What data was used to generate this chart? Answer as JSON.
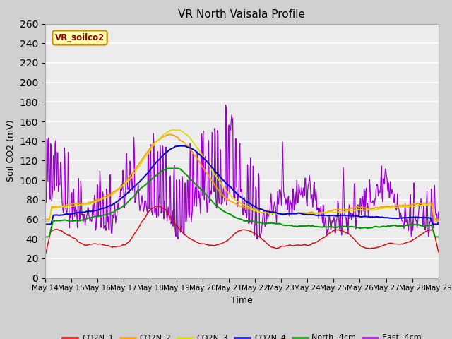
{
  "title": "VR North Vaisala Profile",
  "ylabel": "Soil CO2 (mV)",
  "xlabel": "Time",
  "annotation": "VR_soilco2",
  "ylim": [
    0,
    260
  ],
  "yticks": [
    0,
    20,
    40,
    60,
    80,
    100,
    120,
    140,
    160,
    180,
    200,
    220,
    240,
    260
  ],
  "fig_bg": "#d0d0d0",
  "plot_bg": "#ececec",
  "colors": {
    "CO2N_1": "#dd0000",
    "CO2N_2": "#ff9900",
    "CO2N_3": "#dddd00",
    "CO2N_4": "#0000cc",
    "North_4cm": "#009900",
    "East_4cm": "#9900cc"
  },
  "x_labels": [
    "May 14",
    "May 15",
    "May 16",
    "May 17",
    "May 18",
    "May 19",
    "May 20",
    "May 21",
    "May 22",
    "May 23",
    "May 24",
    "May 25",
    "May 26",
    "May 27",
    "May 28",
    "May 29"
  ],
  "n_points": 720
}
